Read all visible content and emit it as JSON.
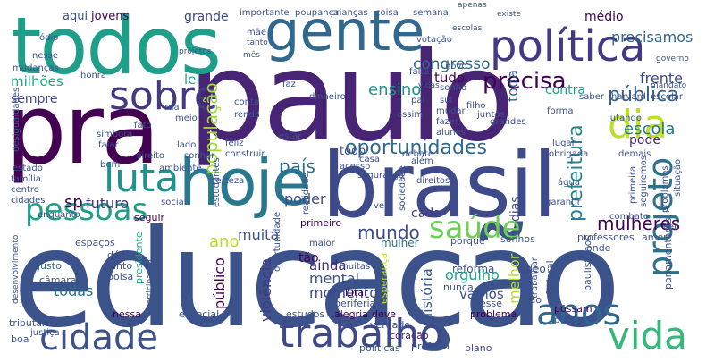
{
  "words": [
    {
      "text": "educação",
      "color": "#3b528b"
    },
    {
      "text": "paulo",
      "color": "#482475"
    },
    {
      "text": "brasil",
      "color": "#3e4a89"
    },
    {
      "text": "pra",
      "color": "#440154"
    },
    {
      "text": "todos",
      "color": "#1f9e89"
    },
    {
      "text": "gente",
      "color": "#31688e"
    },
    {
      "text": "hoje",
      "color": "#2a788e"
    },
    {
      "text": "política",
      "color": "#443983"
    },
    {
      "text": "trabalho",
      "color": "#3e4989"
    },
    {
      "text": "cidade",
      "color": "#3b528b"
    },
    {
      "text": "vida",
      "color": "#35b779"
    },
    {
      "text": "sobre",
      "color": "#443983"
    },
    {
      "text": "luta",
      "color": "#21918c"
    },
    {
      "text": "dia",
      "color": "#bddf26"
    },
    {
      "text": "anos",
      "color": "#31688e"
    },
    {
      "text": "projeto",
      "color": "#2c728e"
    },
    {
      "text": "saúde",
      "color": "#6ece58"
    },
    {
      "text": "pessoas",
      "color": "#1f9e89"
    },
    {
      "text": "precisa",
      "color": "#440154"
    },
    {
      "text": "oportunidades",
      "color": "#31688e"
    },
    {
      "text": "mundo",
      "color": "#3e4989"
    },
    {
      "text": "pública",
      "color": "#355f8d"
    },
    {
      "text": "prefeitura",
      "color": "#26828e"
    },
    {
      "text": "mulheres",
      "color": "#440154"
    },
    {
      "text": "país",
      "color": "#2c728e"
    },
    {
      "text": "ensino",
      "color": "#21918c"
    },
    {
      "text": "congresso",
      "color": "#31688e"
    },
    {
      "text": "população",
      "color": "#a0da39"
    },
    {
      "text": "escola",
      "color": "#2a788e"
    },
    {
      "text": "sp",
      "color": "#440154"
    },
    {
      "text": "futuro",
      "color": "#46327e"
    },
    {
      "text": "frente",
      "color": "#3e4989"
    },
    {
      "text": "precisamos",
      "color": "#31688e"
    },
    {
      "text": "história",
      "color": "#38588c"
    },
    {
      "text": "orgulho",
      "color": "#1fa187"
    },
    {
      "text": "mental",
      "color": "#3b528b"
    },
    {
      "text": "momento",
      "color": "#3e4989"
    },
    {
      "text": "violência",
      "color": "#453781"
    },
    {
      "text": "muita",
      "color": "#3b528b"
    },
    {
      "text": "poder",
      "color": "#3e4989"
    },
    {
      "text": "ainda",
      "color": "#482878"
    },
    {
      "text": "todas",
      "color": "#2c728e"
    },
    {
      "text": "público",
      "color": "#440154"
    },
    {
      "text": "ano",
      "color": "#b5de2b"
    },
    {
      "text": "vamos",
      "color": "#3b528b"
    },
    {
      "text": "milhões",
      "color": "#20a486"
    },
    {
      "text": "sempre",
      "color": "#3e4989"
    },
    {
      "text": "lei",
      "color": "#20a486"
    },
    {
      "text": "tudo",
      "color": "#440154"
    },
    {
      "text": "toda",
      "color": "#355f8d"
    },
    {
      "text": "contra",
      "color": "#1f9e89"
    },
    {
      "text": "grande",
      "color": "#3e4989"
    },
    {
      "text": "jovens",
      "color": "#440154"
    },
    {
      "text": "aqui",
      "color": "#3b528b"
    },
    {
      "text": "médio",
      "color": "#440154"
    },
    {
      "text": "todo",
      "color": "#3e4989"
    },
    {
      "text": "cada",
      "color": "#443983"
    },
    {
      "text": "tão",
      "color": "#440154"
    },
    {
      "text": "melhor",
      "color": "#b5de2b"
    },
    {
      "text": "dias",
      "color": "#3e4989"
    },
    {
      "text": "pode",
      "color": "#482878"
    },
    {
      "text": "mulher",
      "color": "#2c728e"
    },
    {
      "text": "reforma",
      "color": "#3b528b"
    },
    {
      "text": "vídeo",
      "color": "#3e4989"
    },
    {
      "text": "justo",
      "color": "#2c728e"
    },
    {
      "text": "bolsa",
      "color": "#3b528b"
    },
    {
      "text": "junto",
      "color": "#3b528b"
    },
    {
      "text": "dá",
      "color": "#3e4989"
    },
    {
      "text": "presidente",
      "color": "#20a486"
    },
    {
      "text": "câmara",
      "color": "#3b528b"
    },
    {
      "text": "nessa",
      "color": "#440154"
    },
    {
      "text": "especial",
      "color": "#3b528b"
    },
    {
      "text": "estudos",
      "color": "#3b528b"
    },
    {
      "text": "alegria",
      "color": "#440154"
    },
    {
      "text": "verdade",
      "color": "#3e4989"
    },
    {
      "text": "deve",
      "color": "#440154"
    },
    {
      "text": "problema",
      "color": "#440154"
    },
    {
      "text": "desse",
      "color": "#3b528b"
    },
    {
      "text": "possam",
      "color": "#440154"
    },
    {
      "text": "política",
      "color": "#3b528b"
    },
    {
      "text": "prefeito",
      "color": "#3b528b"
    },
    {
      "text": "plano",
      "color": "#3e4989"
    },
    {
      "text": "coração",
      "color": "#482878"
    },
    {
      "text": "políticas",
      "color": "#3b528b"
    },
    {
      "text": "tributária",
      "color": "#3b528b"
    },
    {
      "text": "boa",
      "color": "#3b528b"
    },
    {
      "text": "lutar",
      "color": "#440154"
    },
    {
      "text": "vão",
      "color": "#3b528b"
    },
    {
      "text": "nunca",
      "color": "#3b528b"
    },
    {
      "text": "esperança",
      "color": "#bddf26"
    },
    {
      "text": "periferias",
      "color": "#3b528b"
    },
    {
      "text": "muitas",
      "color": "#3b528b"
    },
    {
      "text": "federal",
      "color": "#3b528b"
    },
    {
      "text": "trabalhar",
      "color": "#3b528b"
    },
    {
      "text": "paulistanos",
      "color": "#3b528b"
    },
    {
      "text": "parlamentares",
      "color": "#3b528b"
    },
    {
      "text": "professores",
      "color": "#3b528b"
    },
    {
      "text": "amor",
      "color": "#3b528b"
    },
    {
      "text": "onde",
      "color": "#3b528b"
    },
    {
      "text": "sonhos",
      "color": "#3b528b"
    },
    {
      "text": "porque",
      "color": "#3b528b"
    },
    {
      "text": "combate",
      "color": "#3b528b"
    },
    {
      "text": "primeiro",
      "color": "#440154"
    },
    {
      "text": "maior",
      "color": "#3b528b"
    },
    {
      "text": "oportunidade",
      "color": "#3b528b"
    },
    {
      "text": "seguir",
      "color": "#440154"
    },
    {
      "text": "social",
      "color": "#3b528b"
    },
    {
      "text": "espaços",
      "color": "#3b528b"
    },
    {
      "text": "enquanto",
      "color": "#3b528b"
    },
    {
      "text": "cidades",
      "color": "#3b528b"
    },
    {
      "text": "centro",
      "color": "#3b528b"
    },
    {
      "text": "família",
      "color": "#3b528b"
    },
    {
      "text": "estado",
      "color": "#3b528b"
    },
    {
      "text": "bem",
      "color": "#3b528b"
    },
    {
      "text": "ambiente",
      "color": "#3b528b"
    },
    {
      "text": "direito",
      "color": "#3b528b"
    },
    {
      "text": "falar",
      "color": "#3b528b"
    },
    {
      "text": "simbora",
      "color": "#3b528b"
    },
    {
      "text": "lado",
      "color": "#3b528b"
    },
    {
      "text": "feliz",
      "color": "#3b528b"
    },
    {
      "text": "sonhar",
      "color": "#3b528b"
    },
    {
      "text": "construir",
      "color": "#3b528b"
    },
    {
      "text": "estudantes",
      "color": "#3b528b"
    },
    {
      "text": "estar",
      "color": "#3b528b"
    },
    {
      "text": "renda",
      "color": "#3b528b"
    },
    {
      "text": "conta",
      "color": "#3b528b"
    },
    {
      "text": "dinheiro",
      "color": "#3b528b"
    },
    {
      "text": "rua",
      "color": "#3b528b"
    },
    {
      "text": "meio",
      "color": "#3b528b"
    },
    {
      "text": "mudanças",
      "color": "#3b528b"
    },
    {
      "text": "honra",
      "color": "#3b528b"
    },
    {
      "text": "desigualdades",
      "color": "#3b528b"
    },
    {
      "text": "nesse",
      "color": "#3b528b"
    },
    {
      "text": "ódio",
      "color": "#3b528b"
    },
    {
      "text": "mãe",
      "color": "#3b528b"
    },
    {
      "text": "importante",
      "color": "#3b528b"
    },
    {
      "text": "poupança",
      "color": "#3b528b"
    },
    {
      "text": "crianças",
      "color": "#3b528b"
    },
    {
      "text": "coisa",
      "color": "#3b528b"
    },
    {
      "text": "semana",
      "color": "#3b528b"
    },
    {
      "text": "apenas",
      "color": "#3b528b"
    },
    {
      "text": "existe",
      "color": "#3b528b"
    },
    {
      "text": "escolas",
      "color": "#3b528b"
    },
    {
      "text": "votação",
      "color": "#3b528b"
    },
    {
      "text": "projetos",
      "color": "#3b528b"
    },
    {
      "text": "falta",
      "color": "#3b528b"
    },
    {
      "text": "novo",
      "color": "#3b528b"
    },
    {
      "text": "vidas",
      "color": "#3b528b"
    },
    {
      "text": "pai",
      "color": "#3b528b"
    },
    {
      "text": "sonho",
      "color": "#3b528b"
    },
    {
      "text": "sul",
      "color": "#3b528b"
    },
    {
      "text": "filho",
      "color": "#3b528b"
    },
    {
      "text": "saber",
      "color": "#3b528b"
    },
    {
      "text": "harvard",
      "color": "#3b528b"
    },
    {
      "text": "escolar",
      "color": "#3b528b"
    },
    {
      "text": "mandato",
      "color": "#3b528b"
    },
    {
      "text": "governo",
      "color": "#3b528b"
    },
    {
      "text": "assim",
      "color": "#3b528b"
    },
    {
      "text": "mudar",
      "color": "#3b528b"
    },
    {
      "text": "fazer",
      "color": "#3b528b"
    },
    {
      "text": "alunos",
      "color": "#3b528b"
    },
    {
      "text": "juntos",
      "color": "#3b528b"
    },
    {
      "text": "grandes",
      "color": "#3b528b"
    },
    {
      "text": "forma",
      "color": "#3b528b"
    },
    {
      "text": "lutando",
      "color": "#3b528b"
    },
    {
      "text": "lugar",
      "color": "#3b528b"
    },
    {
      "text": "obrigada",
      "color": "#3b528b"
    },
    {
      "text": "demais",
      "color": "#3b528b"
    },
    {
      "text": "além",
      "color": "#3b528b"
    },
    {
      "text": "debate",
      "color": "#3b528b"
    },
    {
      "text": "casa",
      "color": "#3b528b"
    },
    {
      "text": "acesso",
      "color": "#3b528b"
    },
    {
      "text": "segurança",
      "color": "#3b528b"
    },
    {
      "text": "direitos",
      "color": "#3b528b"
    },
    {
      "text": "água",
      "color": "#3b528b"
    },
    {
      "text": "garantir",
      "color": "#3b528b"
    },
    {
      "text": "sociedade",
      "color": "#3b528b"
    },
    {
      "text": "vem",
      "color": "#3b528b"
    },
    {
      "text": "primeira",
      "color": "#3b528b"
    },
    {
      "text": "seguiremos",
      "color": "#3b528b"
    },
    {
      "text": "problemas",
      "color": "#3b528b"
    },
    {
      "text": "situação",
      "color": "#3b528b"
    },
    {
      "text": "certeza",
      "color": "#3b528b"
    },
    {
      "text": "realidade",
      "color": "#3b528b"
    },
    {
      "text": "desenvolvimento",
      "color": "#3b528b"
    },
    {
      "text": "justiça",
      "color": "#3b528b"
    },
    {
      "text": "participação",
      "color": "#3b528b"
    },
    {
      "text": "fato",
      "color": "#3b528b"
    },
    {
      "text": "tanto",
      "color": "#3b528b"
    },
    {
      "text": "mês",
      "color": "#3b528b"
    },
    {
      "text": "faz",
      "color": "#3b528b"
    },
    {
      "text": "ver",
      "color": "#3b528b"
    }
  ]
}
